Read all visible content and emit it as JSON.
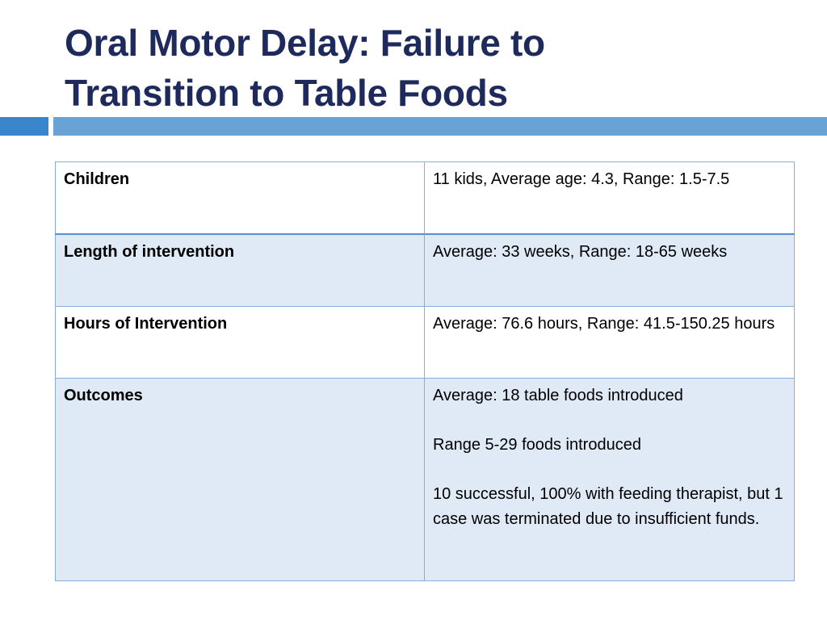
{
  "slide": {
    "title_line1": "Oral Motor Delay: Failure to",
    "title_line2": "Transition to Table Foods"
  },
  "colors": {
    "title": "#1f2a5c",
    "accent_bar_dark": "#3a86cc",
    "accent_bar_light": "#68a3d4",
    "table_border": "#84afdc",
    "row_shade": "#dfeaf6"
  },
  "table": {
    "rows": [
      {
        "label": "Children",
        "value": [
          "11 kids, Average age: 4.3, Range: 1.5-7.5"
        ]
      },
      {
        "label": "Length of intervention",
        "value": [
          "Average: 33 weeks, Range: 18-65 weeks"
        ]
      },
      {
        "label": "Hours of Intervention",
        "value": [
          "Average: 76.6 hours, Range: 41.5-150.25 hours"
        ]
      },
      {
        "label": "Outcomes",
        "value": [
          "Average: 18 table foods introduced",
          "Range 5-29 foods introduced",
          "10 successful, 100% with feeding therapist, but 1 case was terminated due to insufficient funds."
        ]
      }
    ]
  }
}
